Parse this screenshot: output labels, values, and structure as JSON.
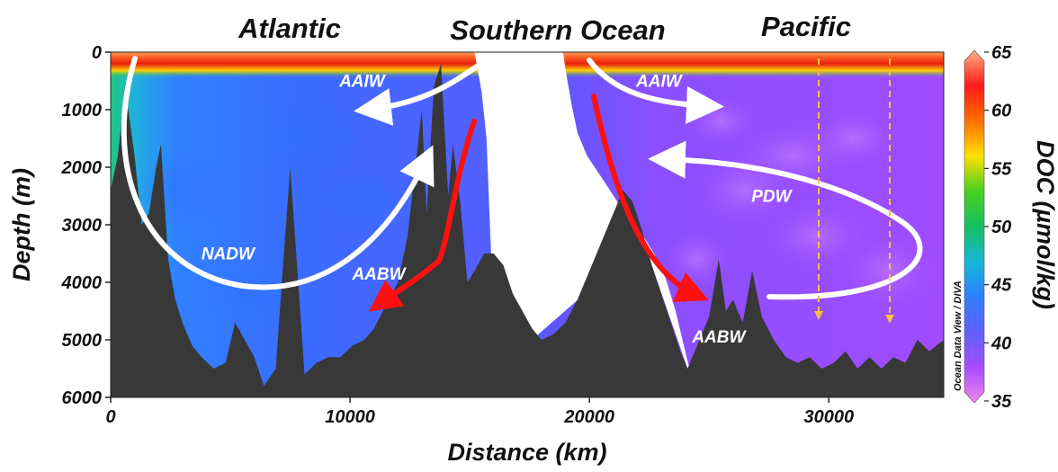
{
  "chart_data": {
    "type": "heatmap",
    "title": "",
    "region_labels": [
      "Atlantic",
      "Southern Ocean",
      "Pacific"
    ],
    "xlabel": "Distance (km)",
    "ylabel": "Depth (m)",
    "xlim": [
      0,
      34800
    ],
    "ylim": [
      6000,
      0
    ],
    "x_ticks": [
      0,
      10000,
      20000,
      30000
    ],
    "x_tick_labels": [
      "0",
      "10000",
      "20000",
      "30000"
    ],
    "y_ticks": [
      0,
      1000,
      2000,
      3000,
      4000,
      5000,
      6000
    ],
    "y_tick_labels": [
      "0",
      "1000",
      "2000",
      "3000",
      "4000",
      "5000",
      "6000"
    ],
    "colorbar": {
      "label": "DOC (µmol/kg)",
      "min": 35,
      "max": 65,
      "ticks": [
        35,
        40,
        45,
        50,
        55,
        60,
        65
      ],
      "tick_labels": [
        "35",
        "40",
        "45",
        "50",
        "55",
        "60",
        "65"
      ],
      "colors": [
        "#ee88ee",
        "#a64dff",
        "#6060ff",
        "#2f7fff",
        "#16b8d8",
        "#15c060",
        "#48d020",
        "#ffe000",
        "#ff7000",
        "#ff1a1a",
        "#ffb080"
      ]
    },
    "credit": "Ocean Data View / DIVA",
    "water_masses": [
      {
        "name": "AAIW",
        "x": 10500,
        "y": 600
      },
      {
        "name": "AAIW",
        "x": 22900,
        "y": 600
      },
      {
        "name": "NADW",
        "x": 4900,
        "y": 3600
      },
      {
        "name": "AABW",
        "x": 11200,
        "y": 3950
      },
      {
        "name": "AABW",
        "x": 25400,
        "y": 5050
      },
      {
        "name": "PDW",
        "x": 27600,
        "y": 2600
      }
    ],
    "bathymetry": [
      [
        0,
        2400
      ],
      [
        300,
        1800
      ],
      [
        600,
        600
      ],
      [
        1000,
        1800
      ],
      [
        1300,
        3000
      ],
      [
        1600,
        2800
      ],
      [
        1900,
        2000
      ],
      [
        2100,
        1600
      ],
      [
        2400,
        3600
      ],
      [
        2700,
        4300
      ],
      [
        3000,
        4700
      ],
      [
        3400,
        5100
      ],
      [
        3800,
        5300
      ],
      [
        4300,
        5500
      ],
      [
        4800,
        5400
      ],
      [
        5200,
        4700
      ],
      [
        5600,
        5000
      ],
      [
        6000,
        5300
      ],
      [
        6400,
        5800
      ],
      [
        6900,
        5500
      ],
      [
        7200,
        3700
      ],
      [
        7500,
        2000
      ],
      [
        7800,
        3800
      ],
      [
        8100,
        5600
      ],
      [
        8600,
        5400
      ],
      [
        9100,
        5300
      ],
      [
        9600,
        5300
      ],
      [
        10100,
        5100
      ],
      [
        10600,
        5000
      ],
      [
        11000,
        4800
      ],
      [
        11500,
        4400
      ],
      [
        12000,
        4000
      ],
      [
        12400,
        3200
      ],
      [
        12700,
        2100
      ],
      [
        13000,
        1000
      ],
      [
        13200,
        2800
      ],
      [
        13500,
        600
      ],
      [
        13800,
        200
      ],
      [
        14100,
        2500
      ],
      [
        14300,
        1600
      ],
      [
        14600,
        2600
      ],
      [
        14900,
        4000
      ],
      [
        15200,
        3800
      ],
      [
        15600,
        3500
      ],
      [
        16000,
        3500
      ],
      [
        16400,
        3700
      ],
      [
        16800,
        4200
      ],
      [
        17200,
        4500
      ],
      [
        17600,
        4800
      ],
      [
        18000,
        5000
      ],
      [
        18500,
        4900
      ],
      [
        19000,
        4700
      ],
      [
        19500,
        4300
      ],
      [
        20000,
        3800
      ],
      [
        20500,
        3300
      ],
      [
        21000,
        2800
      ],
      [
        21400,
        2400
      ],
      [
        21800,
        2600
      ],
      [
        22200,
        3100
      ],
      [
        22600,
        3700
      ],
      [
        23000,
        4200
      ],
      [
        23400,
        4700
      ],
      [
        23800,
        5200
      ],
      [
        24100,
        5500
      ],
      [
        24500,
        5100
      ],
      [
        25000,
        4600
      ],
      [
        25400,
        3600
      ],
      [
        25700,
        4500
      ],
      [
        26000,
        4300
      ],
      [
        26400,
        4700
      ],
      [
        26800,
        3800
      ],
      [
        27200,
        4600
      ],
      [
        27700,
        5000
      ],
      [
        28200,
        5300
      ],
      [
        28700,
        5400
      ],
      [
        29200,
        5300
      ],
      [
        29700,
        5500
      ],
      [
        30200,
        5400
      ],
      [
        30700,
        5200
      ],
      [
        31200,
        5500
      ],
      [
        31700,
        5300
      ],
      [
        32200,
        5500
      ],
      [
        32700,
        5300
      ],
      [
        33200,
        5400
      ],
      [
        33700,
        5000
      ],
      [
        34200,
        5200
      ],
      [
        34800,
        5000
      ]
    ]
  }
}
